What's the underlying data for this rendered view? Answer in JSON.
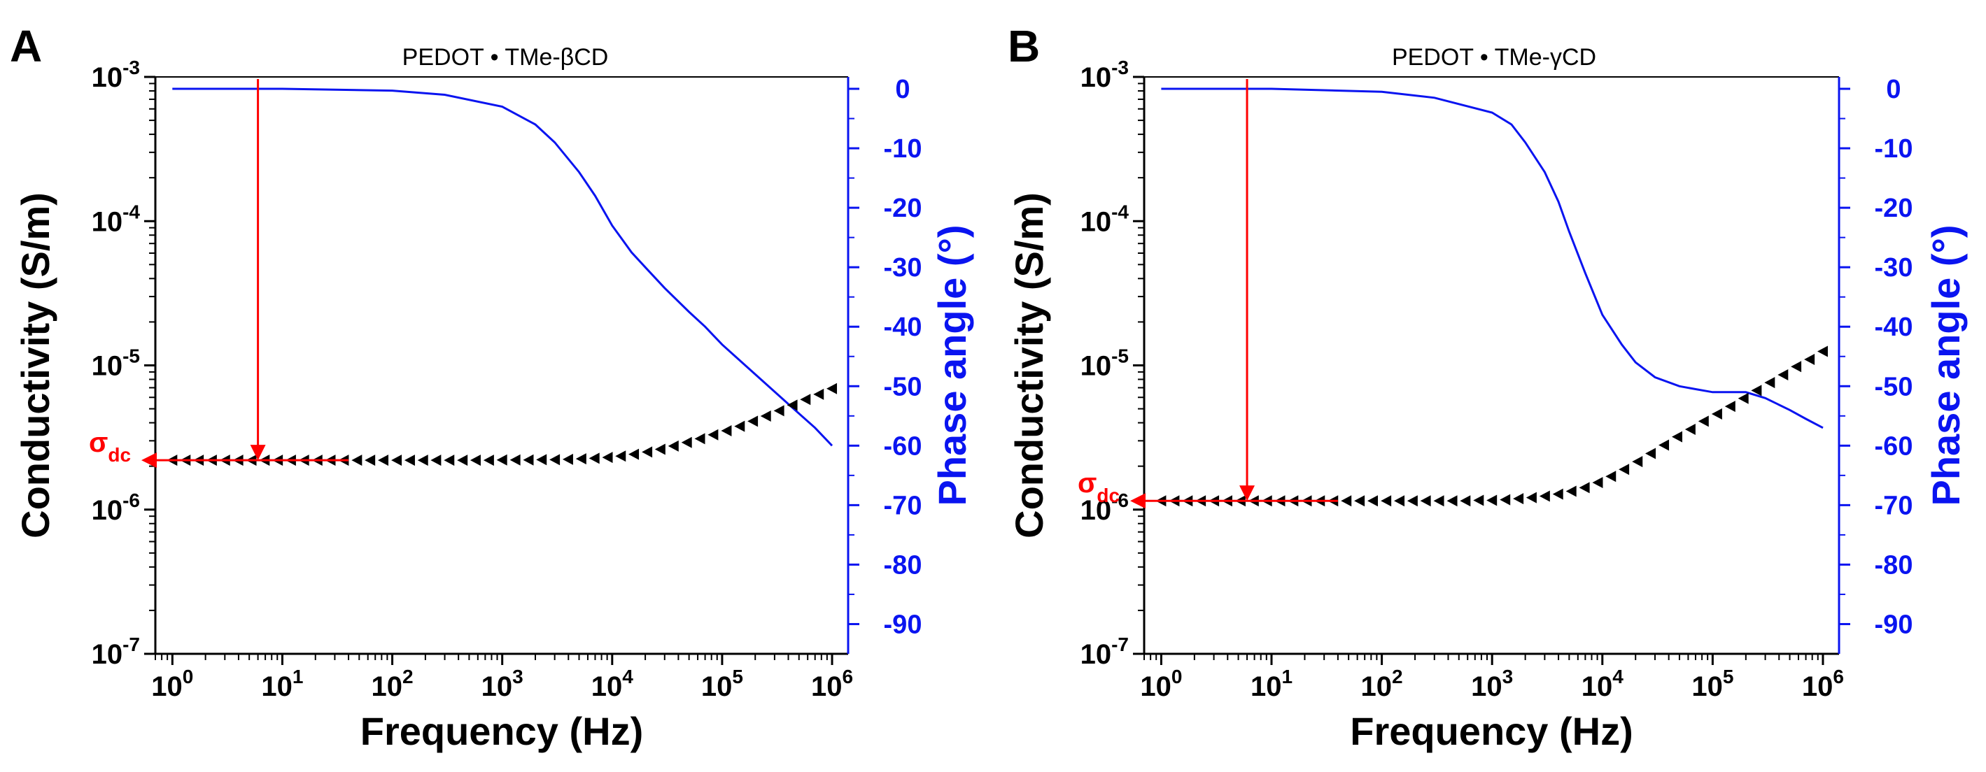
{
  "chart_data": [
    {
      "type": "line",
      "panel_label": "A",
      "title": "PEDOT • TMe-βCD",
      "xlabel": "Frequency (Hz)",
      "ylabel": "Conductivity (S/m)",
      "y2label": "Phase angle (°)",
      "x_scale": "log",
      "xlim": [
        0.7,
        1400000
      ],
      "x_ticks": [
        1,
        10,
        100,
        1000,
        10000,
        100000,
        1000000
      ],
      "x_tick_labels": [
        [
          "10",
          "0"
        ],
        [
          "10",
          "1"
        ],
        [
          "10",
          "2"
        ],
        [
          "10",
          "3"
        ],
        [
          "10",
          "4"
        ],
        [
          "10",
          "5"
        ],
        [
          "10",
          "6"
        ]
      ],
      "y_scale": "log",
      "ylim": [
        1e-07,
        0.001
      ],
      "y_ticks": [
        1e-07,
        1e-06,
        1e-05,
        0.0001,
        0.001
      ],
      "y_tick_labels": [
        [
          "10",
          "-7"
        ],
        [
          "10",
          "-6"
        ],
        [
          "10",
          "-5"
        ],
        [
          "10",
          "-4"
        ],
        [
          "10",
          "-3"
        ]
      ],
      "y2lim": [
        -95,
        2
      ],
      "y2_ticks": [
        0,
        -10,
        -20,
        -30,
        -40,
        -50,
        -60,
        -70,
        -80,
        -90
      ],
      "y2_tick_labels": [
        "0",
        "-10",
        "-20",
        "-30",
        "-40",
        "-50",
        "-60",
        "-70",
        "-80",
        "-90"
      ],
      "annotation": {
        "text": "σ",
        "sub": "dc",
        "value": 2.2e-06,
        "x_freq": 6
      },
      "series": [
        {
          "name": "Conductivity",
          "axis": "left",
          "color": "#000000",
          "marker": "left-triangle",
          "x": [
            1,
            1.32,
            1.74,
            2.29,
            3.02,
            3.98,
            5.25,
            6.92,
            9.12,
            12,
            15.8,
            20.9,
            27.5,
            36.3,
            47.9,
            63.1,
            83.2,
            110,
            145,
            191,
            251,
            331,
            437,
            575,
            759,
            1000,
            1320,
            1740,
            2290,
            3020,
            3980,
            5250,
            6920,
            9120,
            12000,
            15800,
            20900,
            27500,
            36300,
            47900,
            63100,
            83200,
            110000,
            145000,
            191000,
            251000,
            331000,
            437000,
            575000,
            759000,
            1000000
          ],
          "y": [
            2.2e-06,
            2.2e-06,
            2.2e-06,
            2.2e-06,
            2.2e-06,
            2.2e-06,
            2.2e-06,
            2.2e-06,
            2.2e-06,
            2.2e-06,
            2.2e-06,
            2.2e-06,
            2.2e-06,
            2.2e-06,
            2.2e-06,
            2.2e-06,
            2.2e-06,
            2.2e-06,
            2.2e-06,
            2.2e-06,
            2.2e-06,
            2.2e-06,
            2.2e-06,
            2.2e-06,
            2.2e-06,
            2.21e-06,
            2.21e-06,
            2.21e-06,
            2.22e-06,
            2.22e-06,
            2.23e-06,
            2.25e-06,
            2.27e-06,
            2.3e-06,
            2.35e-06,
            2.42e-06,
            2.51e-06,
            2.62e-06,
            2.76e-06,
            2.92e-06,
            3.1e-06,
            3.3e-06,
            3.52e-06,
            3.78e-06,
            4.1e-06,
            4.45e-06,
            4.85e-06,
            5.3e-06,
            5.8e-06,
            6.3e-06,
            6.9e-06
          ]
        },
        {
          "name": "Phase angle",
          "axis": "right",
          "color": "#0a14f0",
          "marker": "none",
          "x": [
            1,
            10,
            100,
            300,
            1000,
            2000,
            3000,
            5000,
            7000,
            10000,
            15000,
            20000,
            30000,
            50000,
            70000,
            100000,
            200000,
            400000,
            700000,
            1000000
          ],
          "y": [
            0,
            0,
            -0.3,
            -1,
            -3,
            -6,
            -9,
            -14,
            -18,
            -23,
            -27.5,
            -30,
            -33.5,
            -37.5,
            -40,
            -43,
            -48,
            -53,
            -57,
            -60
          ]
        }
      ]
    },
    {
      "type": "line",
      "panel_label": "B",
      "title": "PEDOT • TMe-γCD",
      "xlabel": "Frequency (Hz)",
      "ylabel": "Conductivity (S/m)",
      "y2label": "Phase angle (°)",
      "x_scale": "log",
      "xlim": [
        0.7,
        1400000
      ],
      "x_ticks": [
        1,
        10,
        100,
        1000,
        10000,
        100000,
        1000000
      ],
      "x_tick_labels": [
        [
          "10",
          "0"
        ],
        [
          "10",
          "1"
        ],
        [
          "10",
          "2"
        ],
        [
          "10",
          "3"
        ],
        [
          "10",
          "4"
        ],
        [
          "10",
          "5"
        ],
        [
          "10",
          "6"
        ]
      ],
      "y_scale": "log",
      "ylim": [
        1e-07,
        0.001
      ],
      "y_ticks": [
        1e-07,
        1e-06,
        1e-05,
        0.0001,
        0.001
      ],
      "y_tick_labels": [
        [
          "10",
          "-7"
        ],
        [
          "10",
          "-6"
        ],
        [
          "10",
          "-5"
        ],
        [
          "10",
          "-4"
        ],
        [
          "10",
          "-3"
        ]
      ],
      "y2lim": [
        -95,
        2
      ],
      "y2_ticks": [
        0,
        -10,
        -20,
        -30,
        -40,
        -50,
        -60,
        -70,
        -80,
        -90
      ],
      "y2_tick_labels": [
        "0",
        "-10",
        "-20",
        "-30",
        "-40",
        "-50",
        "-60",
        "-70",
        "-80",
        "-90"
      ],
      "annotation": {
        "text": "σ",
        "sub": "dc",
        "value": 1.15e-06,
        "x_freq": 6
      },
      "series": [
        {
          "name": "Conductivity",
          "axis": "left",
          "color": "#000000",
          "marker": "left-triangle",
          "x": [
            1,
            1.32,
            1.74,
            2.29,
            3.02,
            3.98,
            5.25,
            6.92,
            9.12,
            12,
            15.8,
            20.9,
            27.5,
            36.3,
            47.9,
            63.1,
            83.2,
            110,
            145,
            191,
            251,
            331,
            437,
            575,
            759,
            1000,
            1320,
            1740,
            2290,
            3020,
            3980,
            5250,
            6920,
            9120,
            12000,
            15800,
            20900,
            27500,
            36300,
            47900,
            63100,
            83200,
            110000,
            145000,
            191000,
            251000,
            331000,
            437000,
            575000,
            759000,
            1000000
          ],
          "y": [
            1.15e-06,
            1.15e-06,
            1.15e-06,
            1.15e-06,
            1.15e-06,
            1.15e-06,
            1.15e-06,
            1.15e-06,
            1.15e-06,
            1.15e-06,
            1.15e-06,
            1.15e-06,
            1.15e-06,
            1.15e-06,
            1.15e-06,
            1.15e-06,
            1.15e-06,
            1.15e-06,
            1.15e-06,
            1.15e-06,
            1.15e-06,
            1.15e-06,
            1.15e-06,
            1.15e-06,
            1.16e-06,
            1.16e-06,
            1.17e-06,
            1.19e-06,
            1.21e-06,
            1.24e-06,
            1.28e-06,
            1.34e-06,
            1.42e-06,
            1.54e-06,
            1.7e-06,
            1.9e-06,
            2.15e-06,
            2.45e-06,
            2.8e-06,
            3.2e-06,
            3.6e-06,
            4.1e-06,
            4.6e-06,
            5.2e-06,
            5.9e-06,
            6.7e-06,
            7.6e-06,
            8.6e-06,
            9.8e-06,
            1.1e-05,
            1.25e-05
          ]
        },
        {
          "name": "Phase angle",
          "axis": "right",
          "color": "#0a14f0",
          "marker": "none",
          "x": [
            1,
            10,
            100,
            300,
            1000,
            1500,
            2000,
            3000,
            4000,
            5000,
            7000,
            10000,
            15000,
            20000,
            30000,
            50000,
            70000,
            100000,
            150000,
            200000,
            300000,
            500000,
            700000,
            1000000
          ],
          "y": [
            0,
            0,
            -0.5,
            -1.5,
            -4,
            -6,
            -9,
            -14,
            -19,
            -24,
            -31,
            -38,
            -43,
            -46,
            -48.5,
            -50,
            -50.5,
            -51,
            -51,
            -51,
            -52,
            -54,
            -55.5,
            -57
          ]
        }
      ]
    }
  ]
}
